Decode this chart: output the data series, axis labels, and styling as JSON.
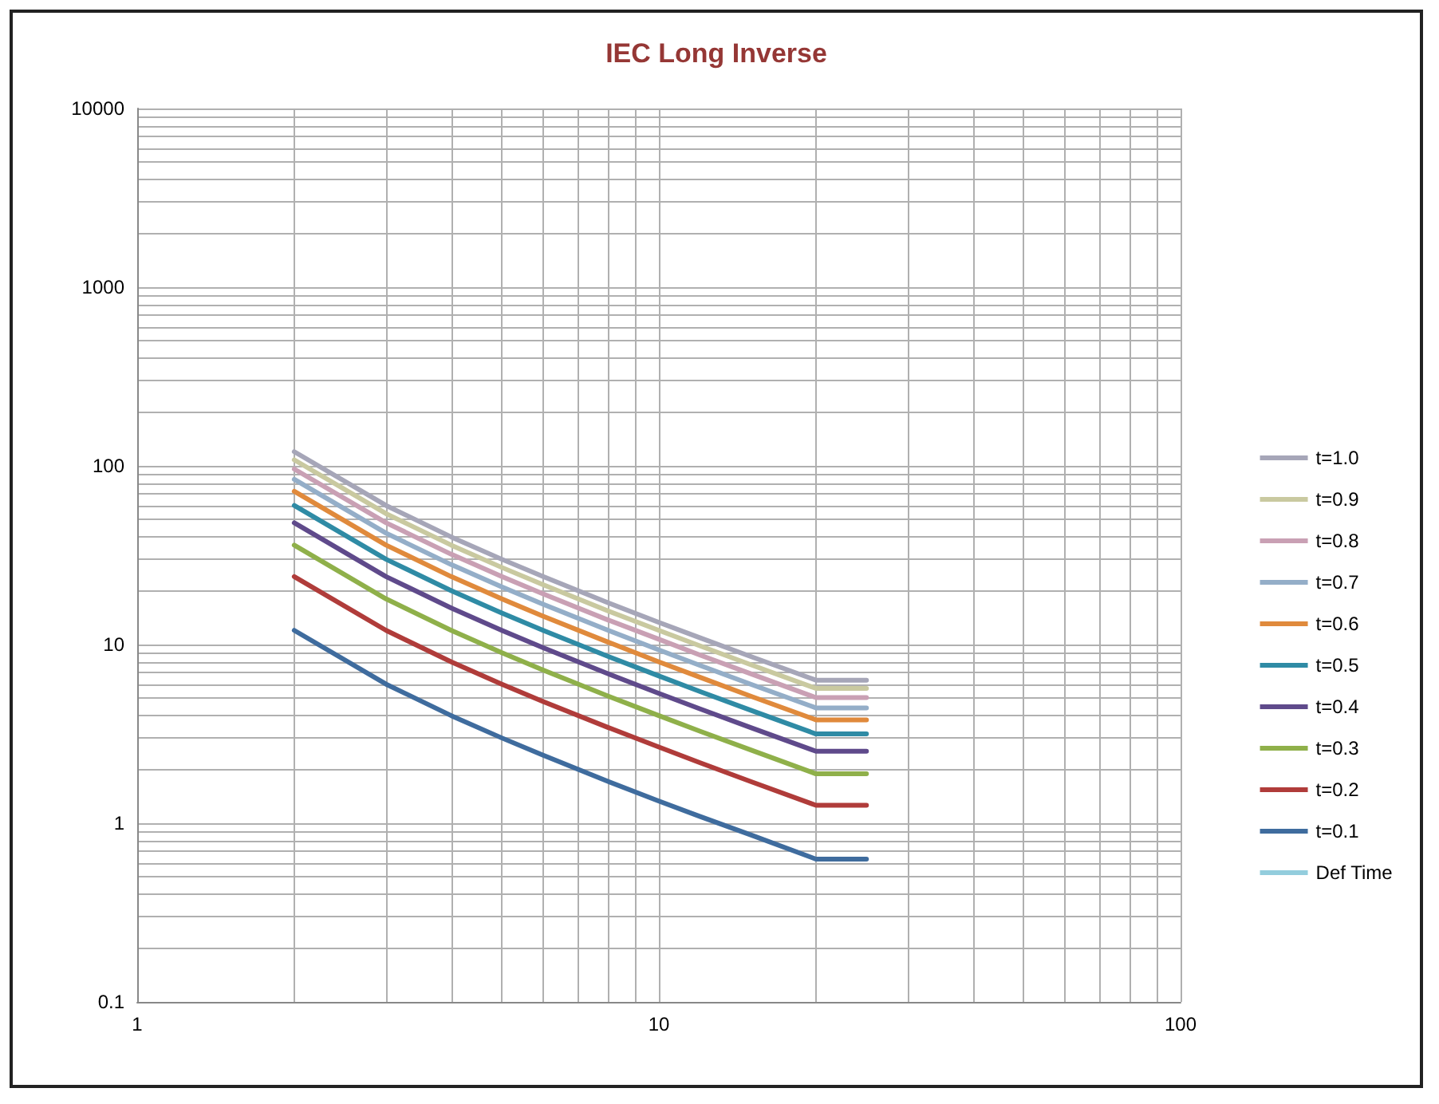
{
  "chart_data": {
    "type": "line",
    "title": "IEC Long Inverse",
    "x": [
      2,
      3,
      4,
      5,
      6,
      8,
      10,
      12,
      15,
      20,
      25
    ],
    "series": [
      {
        "name": "t=1.0",
        "color": "#a6a6b8",
        "values": [
          120,
          60,
          40,
          30,
          24,
          17.1,
          13.3,
          10.9,
          8.57,
          6.32,
          6.32
        ]
      },
      {
        "name": "t=0.9",
        "color": "#c9c9a0",
        "values": [
          108,
          54,
          36,
          27,
          21.6,
          15.4,
          12,
          9.82,
          7.71,
          5.68,
          5.68
        ]
      },
      {
        "name": "t=0.8",
        "color": "#c9a0b4",
        "values": [
          96,
          48,
          32,
          24,
          19.2,
          13.7,
          10.7,
          8.73,
          6.86,
          5.05,
          5.05
        ]
      },
      {
        "name": "t=0.7",
        "color": "#94aec8",
        "values": [
          84,
          42,
          28,
          21,
          16.8,
          12,
          9.33,
          7.64,
          6,
          4.42,
          4.42
        ]
      },
      {
        "name": "t=0.6",
        "color": "#e08a3c",
        "values": [
          72,
          36,
          24,
          18,
          14.4,
          10.3,
          8,
          6.55,
          5.14,
          3.79,
          3.79
        ]
      },
      {
        "name": "t=0.5",
        "color": "#2f8ba5",
        "values": [
          60,
          30,
          20,
          15,
          12,
          8.57,
          6.67,
          5.45,
          4.29,
          3.16,
          3.16
        ]
      },
      {
        "name": "t=0.4",
        "color": "#5f4a8b",
        "values": [
          48,
          24,
          16,
          12,
          9.6,
          6.86,
          5.33,
          4.36,
          3.43,
          2.53,
          2.53
        ]
      },
      {
        "name": "t=0.3",
        "color": "#8fb04a",
        "values": [
          36,
          18,
          12,
          9,
          7.2,
          5.14,
          4,
          3.27,
          2.57,
          1.89,
          1.89
        ]
      },
      {
        "name": "t=0.2",
        "color": "#b03c3a",
        "values": [
          24,
          12,
          8,
          6,
          4.8,
          3.43,
          2.67,
          2.18,
          1.71,
          1.26,
          1.26
        ]
      },
      {
        "name": "t=0.1",
        "color": "#3f6c9e",
        "values": [
          12,
          6,
          4,
          3,
          2.4,
          1.71,
          1.33,
          1.09,
          0.86,
          0.63,
          0.63
        ]
      },
      {
        "name": "Def Time",
        "color": "#93cddd",
        "values": [
          null,
          null,
          null,
          null,
          null,
          null,
          null,
          null,
          null,
          null,
          null
        ]
      }
    ],
    "log": "xy",
    "xlim": [
      1,
      100
    ],
    "ylim": [
      0.1,
      10000
    ],
    "xticks": [
      1,
      {
        "value": 2,
        "label": null
      },
      {
        "value": 3,
        "label": null
      },
      {
        "value": 4,
        "label": null
      },
      {
        "value": 5,
        "label": null
      },
      {
        "value": 6,
        "label": null
      },
      {
        "value": 7,
        "label": null
      },
      {
        "value": 8,
        "label": null
      },
      {
        "value": 9,
        "label": null
      },
      10,
      {
        "value": 20,
        "label": null
      },
      {
        "value": 30,
        "label": null
      },
      {
        "value": 40,
        "label": null
      },
      {
        "value": 50,
        "label": null
      },
      {
        "value": 60,
        "label": null
      },
      {
        "value": 70,
        "label": null
      },
      {
        "value": 80,
        "label": null
      },
      {
        "value": 90,
        "label": null
      },
      100
    ],
    "yticks": [
      0.1,
      {
        "value": 0.2,
        "label": null
      },
      {
        "value": 0.3,
        "label": null
      },
      {
        "value": 0.4,
        "label": null
      },
      {
        "value": 0.5,
        "label": null
      },
      {
        "value": 0.6,
        "label": null
      },
      {
        "value": 0.7,
        "label": null
      },
      {
        "value": 0.8,
        "label": null
      },
      {
        "value": 0.9,
        "label": null
      },
      1,
      {
        "value": 2,
        "label": null
      },
      {
        "value": 3,
        "label": null
      },
      {
        "value": 4,
        "label": null
      },
      {
        "value": 5,
        "label": null
      },
      {
        "value": 6,
        "label": null
      },
      {
        "value": 7,
        "label": null
      },
      {
        "value": 8,
        "label": null
      },
      {
        "value": 9,
        "label": null
      },
      10,
      {
        "value": 20,
        "label": null
      },
      {
        "value": 30,
        "label": null
      },
      {
        "value": 40,
        "label": null
      },
      {
        "value": 50,
        "label": null
      },
      {
        "value": 60,
        "label": null
      },
      {
        "value": 70,
        "label": null
      },
      {
        "value": 80,
        "label": null
      },
      {
        "value": 90,
        "label": null
      },
      100,
      {
        "value": 200,
        "label": null
      },
      {
        "value": 300,
        "label": null
      },
      {
        "value": 400,
        "label": null
      },
      {
        "value": 500,
        "label": null
      },
      {
        "value": 600,
        "label": null
      },
      {
        "value": 700,
        "label": null
      },
      {
        "value": 800,
        "label": null
      },
      {
        "value": 900,
        "label": null
      },
      1000,
      {
        "value": 2000,
        "label": null
      },
      {
        "value": 3000,
        "label": null
      },
      {
        "value": 4000,
        "label": null
      },
      {
        "value": 5000,
        "label": null
      },
      {
        "value": 6000,
        "label": null
      },
      {
        "value": 7000,
        "label": null
      },
      {
        "value": 8000,
        "label": null
      },
      {
        "value": 9000,
        "label": null
      },
      10000
    ],
    "grid": true,
    "legend": "right",
    "marker": "none",
    "line_style": "solid"
  }
}
